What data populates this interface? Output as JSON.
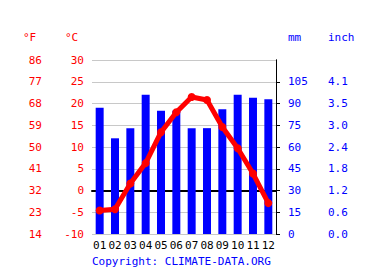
{
  "chart_data": {
    "type": "bar",
    "categories": [
      "01",
      "02",
      "03",
      "04",
      "05",
      "06",
      "07",
      "08",
      "09",
      "10",
      "11",
      "12"
    ],
    "source": "Copyright: CLIMATE-DATA.ORG",
    "grid": true,
    "tick_labels": true,
    "axes": [
      {
        "title": "°F",
        "color": "#ff0000",
        "lim": [
          14,
          86
        ],
        "ticks": [
          14,
          23,
          32,
          41,
          50,
          59,
          68,
          77,
          86
        ]
      },
      {
        "title": "°C",
        "color": "#ff0000",
        "lim": [
          -10,
          30
        ],
        "ticks": [
          -10,
          -5,
          0,
          5,
          10,
          15,
          20,
          25,
          30
        ]
      },
      {
        "title": "mm",
        "color": "#0000ff",
        "lim": [
          0,
          120
        ],
        "ticks": [
          0,
          15,
          30,
          45,
          60,
          75,
          90,
          105
        ]
      },
      {
        "title": "inch",
        "color": "#0000ff",
        "lim": [
          0,
          4.72
        ],
        "ticks": [
          {
            "value": 0,
            "label": "0.0"
          },
          {
            "value": 0.59,
            "label": "0.6"
          },
          {
            "value": 1.18,
            "label": "1.2"
          },
          {
            "value": 1.77,
            "label": "1.8"
          },
          {
            "value": 2.36,
            "label": "2.4"
          },
          {
            "value": 2.95,
            "label": "3.0"
          },
          {
            "value": 3.54,
            "label": "3.5"
          },
          {
            "value": 4.13,
            "label": "4.1"
          }
        ]
      }
    ],
    "series": [
      {
        "type": "bar",
        "color": "#0000ff",
        "axis": 2,
        "values": [
          87,
          66,
          73,
          96,
          85,
          85,
          73,
          73,
          86,
          96,
          94,
          93
        ]
      },
      {
        "type": "line",
        "color": "#ff0000",
        "axis": 1,
        "marker": "circle",
        "values": [
          -4.6,
          -4.3,
          1.6,
          6.3,
          13.4,
          18,
          21.5,
          20.8,
          14.6,
          9.7,
          3.9,
          -2.9
        ]
      }
    ]
  }
}
